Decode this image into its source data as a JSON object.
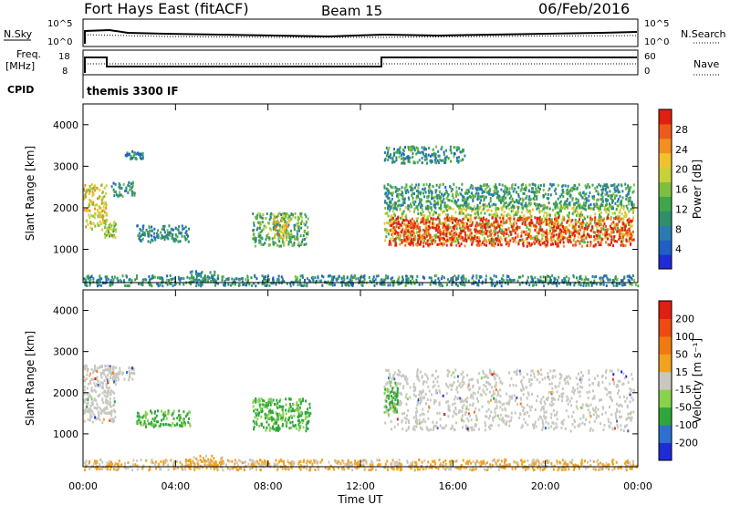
{
  "header": {
    "title": "Fort Hays East (fitACF)",
    "beam": "Beam 15",
    "date": "06/Feb/2016"
  },
  "panels": {
    "noise": {
      "left_label": "N.Sky",
      "right_label": "N.Search",
      "left_ticks": [
        "10^5",
        "10^0"
      ],
      "right_ticks": [
        "10^5",
        "10^0"
      ]
    },
    "freq": {
      "left_label": "Freq.",
      "left_unit": "[MHz]",
      "right_label": "Nave",
      "left_ticks": [
        "18",
        "8"
      ],
      "right_ticks": [
        "60",
        "0"
      ]
    },
    "cpid": {
      "label": "CPID",
      "text": "themis 3300 IF"
    }
  },
  "x_axis": {
    "label": "Time UT",
    "ticks": [
      "00:00",
      "04:00",
      "08:00",
      "12:00",
      "16:00",
      "20:00",
      "00:00"
    ]
  },
  "chart_data": [
    {
      "type": "heatmap",
      "name": "power",
      "ylabel": "Slant Range [km]",
      "yticks": [
        1000,
        2000,
        3000,
        4000
      ],
      "ylim": [
        200,
        4500
      ],
      "xlim": [
        0,
        24
      ],
      "colorbar": {
        "label": "Power [dB]",
        "ticks": [
          4,
          8,
          12,
          16,
          20,
          24,
          28
        ],
        "colors": [
          "#1f2bd6",
          "#1f5fc6",
          "#2a7bb0",
          "#2f8f6a",
          "#3fa64a",
          "#7fbf3f",
          "#c8d13a",
          "#f2c12e",
          "#f28f1e",
          "#ee5a1a",
          "#e01f10"
        ]
      },
      "regions": [
        {
          "t": [
            0.0,
            1.0
          ],
          "r": [
            1500,
            2600
          ],
          "level": 0.62
        },
        {
          "t": [
            0.9,
            1.4
          ],
          "r": [
            1300,
            1700
          ],
          "level": 0.55
        },
        {
          "t": [
            1.2,
            2.2
          ],
          "r": [
            2300,
            2650
          ],
          "level": 0.3
        },
        {
          "t": [
            2.3,
            4.6
          ],
          "r": [
            1200,
            1600
          ],
          "level": 0.3
        },
        {
          "t": [
            1.8,
            2.6
          ],
          "r": [
            3200,
            3400
          ],
          "level": 0.28
        },
        {
          "t": [
            7.3,
            9.7
          ],
          "r": [
            1100,
            1900
          ],
          "level": 0.42
        },
        {
          "t": [
            8.2,
            8.9
          ],
          "r": [
            1250,
            1850
          ],
          "level": 0.65
        },
        {
          "t": [
            4.6,
            6.0
          ],
          "r": [
            250,
            500
          ],
          "level": 0.3
        },
        {
          "t": [
            13.0,
            23.8
          ],
          "r": [
            1200,
            2100
          ],
          "level": 0.55
        },
        {
          "t": [
            13.2,
            23.8
          ],
          "r": [
            1100,
            1800
          ],
          "level": 0.92
        },
        {
          "t": [
            13.0,
            23.8
          ],
          "r": [
            2000,
            2600
          ],
          "level": 0.35
        },
        {
          "t": [
            13.0,
            16.5
          ],
          "r": [
            3100,
            3500
          ],
          "level": 0.3
        },
        {
          "t": [
            0.0,
            24.0
          ],
          "r": [
            150,
            400
          ],
          "level": 0.3
        }
      ]
    },
    {
      "type": "heatmap",
      "name": "velocity",
      "ylabel": "Slant Range [km]",
      "yticks": [
        1000,
        2000,
        3000,
        4000
      ],
      "ylim": [
        200,
        4500
      ],
      "xlim": [
        0,
        24
      ],
      "colorbar": {
        "label": "Velocity [m s⁻¹]",
        "ticks": [
          200,
          100,
          50,
          15,
          -15,
          -50,
          -100,
          -200
        ],
        "colors": [
          "#1f2bd6",
          "#2f6fd0",
          "#2fa63c",
          "#8ad24a",
          "#c8c8c0",
          "#f2a21e",
          "#f07a12",
          "#ee4a12",
          "#e01f10"
        ]
      },
      "regions": [
        {
          "t": [
            0.0,
            1.4
          ],
          "r": [
            1300,
            2700
          ],
          "class": "grey"
        },
        {
          "t": [
            1.0,
            2.2
          ],
          "r": [
            2300,
            2650
          ],
          "class": "grey"
        },
        {
          "t": [
            2.3,
            4.6
          ],
          "r": [
            1200,
            1600
          ],
          "class": "green"
        },
        {
          "t": [
            7.3,
            9.8
          ],
          "r": [
            1100,
            1900
          ],
          "class": "green"
        },
        {
          "t": [
            13.0,
            23.8
          ],
          "r": [
            1100,
            2600
          ],
          "class": "grey"
        },
        {
          "t": [
            13.0,
            13.6
          ],
          "r": [
            1500,
            2300
          ],
          "class": "green"
        },
        {
          "t": [
            4.5,
            6.0
          ],
          "r": [
            200,
            500
          ],
          "class": "orange"
        },
        {
          "t": [
            0.0,
            24.0
          ],
          "r": [
            150,
            400
          ],
          "class": "orange"
        }
      ]
    }
  ]
}
